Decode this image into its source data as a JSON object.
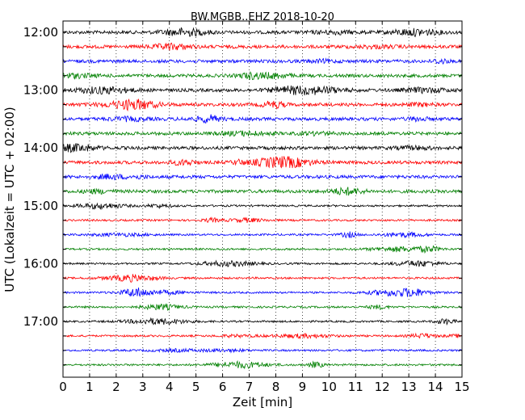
{
  "chart_data": {
    "type": "line",
    "title": "BW.MGBB..EHZ 2018-10-20",
    "xlabel": "Zeit  [min]",
    "ylabel": "UTC (Lokalzeit = UTC + 02:00)",
    "xlim": [
      0,
      15
    ],
    "x_ticks": [
      "0",
      "1",
      "2",
      "3",
      "4",
      "5",
      "6",
      "7",
      "8",
      "9",
      "10",
      "11",
      "12",
      "13",
      "14",
      "15"
    ],
    "y_tick_labels": [
      "12:00",
      "13:00",
      "14:00",
      "15:00",
      "16:00",
      "17:00"
    ],
    "grid": "vertical dotted",
    "trace_colors": [
      "#000000",
      "#ff0000",
      "#0000ff",
      "#008000"
    ],
    "rows": [
      {
        "start": "12:00",
        "color": "#000000"
      },
      {
        "start": "12:15",
        "color": "#ff0000"
      },
      {
        "start": "12:30",
        "color": "#0000ff"
      },
      {
        "start": "12:45",
        "color": "#008000"
      },
      {
        "start": "13:00",
        "color": "#000000"
      },
      {
        "start": "13:15",
        "color": "#ff0000"
      },
      {
        "start": "13:30",
        "color": "#0000ff"
      },
      {
        "start": "13:45",
        "color": "#008000"
      },
      {
        "start": "14:00",
        "color": "#000000"
      },
      {
        "start": "14:15",
        "color": "#ff0000"
      },
      {
        "start": "14:30",
        "color": "#0000ff"
      },
      {
        "start": "14:45",
        "color": "#008000"
      },
      {
        "start": "15:00",
        "color": "#000000"
      },
      {
        "start": "15:15",
        "color": "#ff0000"
      },
      {
        "start": "15:30",
        "color": "#0000ff"
      },
      {
        "start": "15:45",
        "color": "#008000"
      },
      {
        "start": "16:00",
        "color": "#000000"
      },
      {
        "start": "16:15",
        "color": "#ff0000"
      },
      {
        "start": "16:30",
        "color": "#0000ff"
      },
      {
        "start": "16:45",
        "color": "#008000"
      },
      {
        "start": "17:00",
        "color": "#000000"
      },
      {
        "start": "17:15",
        "color": "#ff0000"
      },
      {
        "start": "17:30",
        "color": "#0000ff"
      },
      {
        "start": "17:45",
        "color": "#008000"
      }
    ]
  }
}
